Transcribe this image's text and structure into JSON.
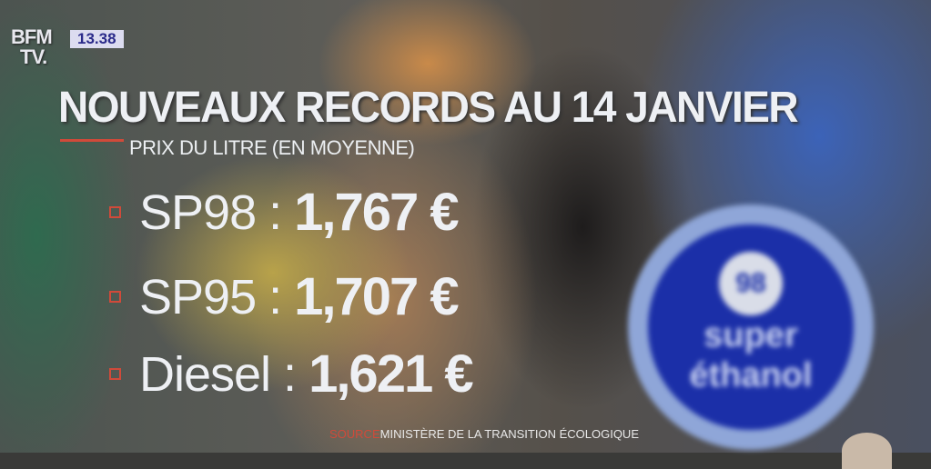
{
  "channel": {
    "logo_top": "BFM",
    "logo_bottom": "TV.",
    "time": "13.38"
  },
  "headline": "NOUVEAUX RECORDS AU 14 JANVIER",
  "subtitle": "PRIX DU LITRE (EN MOYENNE)",
  "prices": [
    {
      "label": "SP98 :",
      "value": "1,767 €"
    },
    {
      "label": "SP95 :",
      "value": "1,707 €"
    },
    {
      "label": "Diesel :",
      "value": "1,621 €"
    }
  ],
  "source": {
    "prefix": "SOURCE",
    "text": "MINISTÈRE DE LA TRANSITION ÉCOLOGIQUE"
  },
  "background_badge": {
    "number": "98",
    "line1": "super",
    "line2": "éthanol"
  },
  "colors": {
    "accent": "#d04a3a",
    "time_bg": "#dcdcf0",
    "time_text": "#2a2a8a"
  }
}
